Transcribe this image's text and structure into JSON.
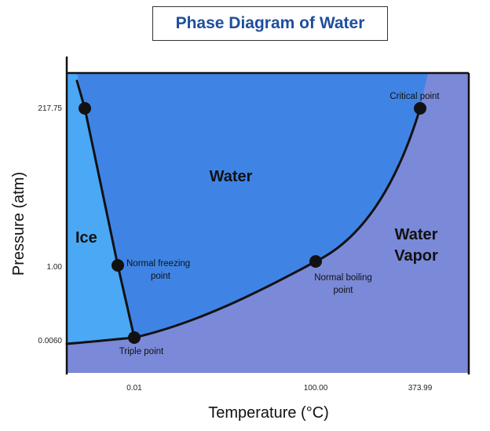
{
  "chart_data": {
    "type": "diagram",
    "title": "Phase Diagram of Water",
    "xlabel": "Temperature (°C)",
    "ylabel": "Pressure (atm)",
    "x_ticks": [
      "0.01",
      "100.00",
      "373.99"
    ],
    "y_ticks": [
      "217.75",
      "1.00",
      "0.0060"
    ],
    "regions": [
      "Ice",
      "Water",
      "Water Vapor"
    ],
    "points": [
      {
        "name": "Triple point",
        "temperature_c": 0.01,
        "pressure_atm": 0.006
      },
      {
        "name": "Normal freezing point",
        "temperature_c": 0,
        "pressure_atm": 1.0
      },
      {
        "name": "Normal boiling point",
        "temperature_c": 100.0,
        "pressure_atm": 1.0
      },
      {
        "name": "Critical point",
        "temperature_c": 373.99,
        "pressure_atm": 217.75
      }
    ],
    "labels": {
      "ice": "Ice",
      "water": "Water",
      "vapor_line1": "Water",
      "vapor_line2": "Vapor",
      "freezing_line1": "Normal freezing",
      "freezing_line2": "point",
      "boiling_line1": "Normal boiling",
      "boiling_line2": "point",
      "triple": "Triple point",
      "critical": "Critical point"
    },
    "colors": {
      "ice": "#4aa8f5",
      "water": "#3f84e5",
      "vapor": "#7a89d8",
      "curve": "#111111",
      "title": "#1f4e9c"
    }
  }
}
